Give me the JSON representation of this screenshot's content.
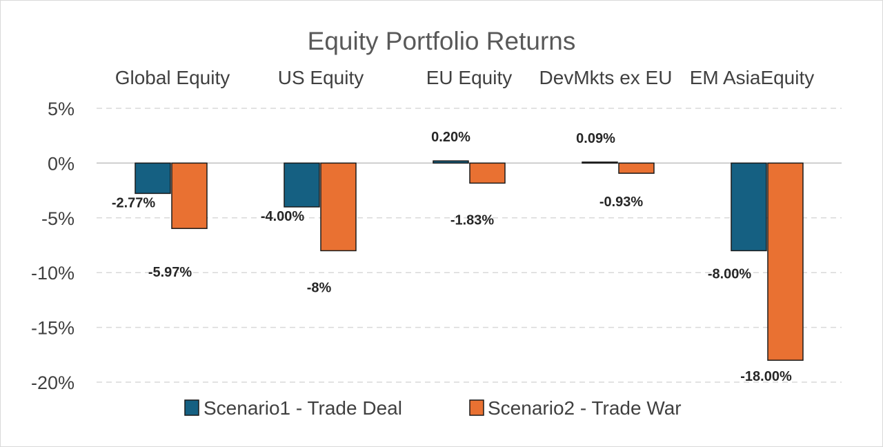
{
  "chart_data": {
    "type": "bar",
    "title": "Equity Portfolio Returns",
    "categories": [
      "Global Equity",
      "US Equity",
      "EU Equity",
      "DevMkts ex EU",
      "EM AsiaEquity"
    ],
    "series": [
      {
        "name": "Scenario1 - Trade Deal",
        "color": "#156082",
        "values": [
          -2.77,
          -4.0,
          0.2,
          0.09,
          -8.0
        ],
        "labels": [
          "-2.77%",
          "-4.00%",
          "0.20%",
          "0.09%",
          "-8.00%"
        ]
      },
      {
        "name": "Scenario2 - Trade War",
        "color": "#E97132",
        "values": [
          -5.97,
          -8.0,
          -1.83,
          -0.93,
          -18.0
        ],
        "labels": [
          "-5.97%",
          "-8%",
          "-1.83%",
          "-0.93%",
          "-18.00%"
        ]
      }
    ],
    "y_ticks": [
      "5%",
      "0%",
      "-5%",
      "-10%",
      "-15%",
      "-20%"
    ],
    "ylim": [
      -20,
      5
    ],
    "grid": true,
    "legend": "bottom",
    "category_labels_position": "top"
  }
}
